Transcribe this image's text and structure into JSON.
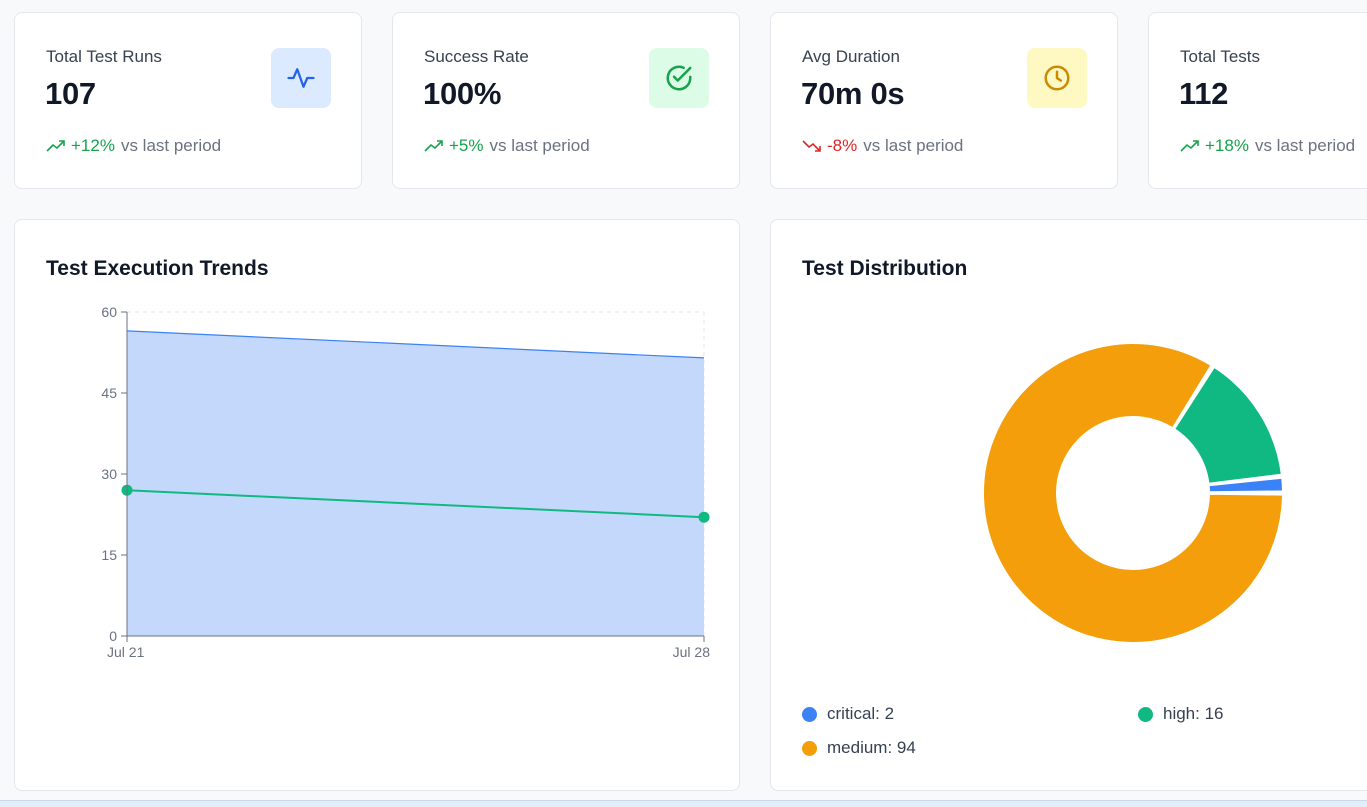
{
  "stats": [
    {
      "title": "Total Test Runs",
      "value": "107",
      "change": "+12%",
      "suffix": "vs last period",
      "direction": "up",
      "icon": "activity-icon",
      "icon_bg": "#dbeafe",
      "icon_color": "#2563eb"
    },
    {
      "title": "Success Rate",
      "value": "100%",
      "change": "+5%",
      "suffix": "vs last period",
      "direction": "up",
      "icon": "check-circle-icon",
      "icon_bg": "#dcfce7",
      "icon_color": "#16a34a"
    },
    {
      "title": "Avg Duration",
      "value": "70m 0s",
      "change": "-8%",
      "suffix": "vs last period",
      "direction": "down",
      "icon": "clock-icon",
      "icon_bg": "#fef9c3",
      "icon_color": "#ca8a04"
    },
    {
      "title": "Total Tests",
      "value": "112",
      "change": "+18%",
      "suffix": "vs last period",
      "direction": "up",
      "icon": "",
      "icon_bg": "",
      "icon_color": ""
    }
  ],
  "trends": {
    "title": "Test Execution Trends"
  },
  "distribution": {
    "title": "Test Distribution"
  },
  "chart_data": [
    {
      "type": "area",
      "x": [
        "Jul 21",
        "Jul 28"
      ],
      "ylim": [
        0,
        60
      ],
      "yticks": [
        0,
        15,
        30,
        45,
        60
      ],
      "grid": true,
      "series": [
        {
          "type": "area",
          "values": [
            56.5,
            51.5
          ],
          "color": "#3b82f6",
          "fill": "#c3d8fb"
        },
        {
          "type": "line",
          "values": [
            27,
            22
          ],
          "color": "#10b981"
        }
      ]
    },
    {
      "type": "pie",
      "donut": true,
      "slices": [
        {
          "label": "critical",
          "value": 2,
          "color": "#3b82f6"
        },
        {
          "label": "high",
          "value": 16,
          "color": "#10b981"
        },
        {
          "label": "medium",
          "value": 94,
          "color": "#f59e0b"
        }
      ],
      "legend": [
        "critical: 2",
        "high: 16",
        "medium: 94"
      ]
    }
  ]
}
